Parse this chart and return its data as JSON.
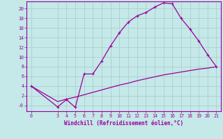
{
  "bg_color": "#c5e8e8",
  "grid_color": "#aacfcf",
  "line_color": "#990099",
  "spine_color": "#990099",
  "xlabel": "Windchill (Refroidissement éolien,°C)",
  "xlim": [
    -0.5,
    21.5
  ],
  "ylim": [
    -1.2,
    21.5
  ],
  "xticks": [
    0,
    3,
    4,
    5,
    6,
    7,
    8,
    9,
    10,
    11,
    12,
    13,
    14,
    15,
    16,
    17,
    18,
    19,
    20,
    21
  ],
  "yticks": [
    0,
    2,
    4,
    6,
    8,
    10,
    12,
    14,
    16,
    18,
    20
  ],
  "ytick_labels": [
    "-0",
    "2",
    "4",
    "6",
    "8",
    "10",
    "12",
    "14",
    "16",
    "18",
    "20"
  ],
  "line1_x": [
    0,
    3,
    4,
    5,
    6,
    7,
    8,
    9,
    10,
    11,
    12,
    13,
    14,
    15,
    16,
    17,
    18,
    19,
    20,
    21
  ],
  "line1_y": [
    4,
    -0.3,
    1.2,
    -0.4,
    6.5,
    6.5,
    9.2,
    12.3,
    15.0,
    17.2,
    18.5,
    19.2,
    20.3,
    21.2,
    21.0,
    18.0,
    15.8,
    13.3,
    10.5,
    8.0
  ],
  "line2_x": [
    0,
    3,
    4,
    5,
    6,
    7,
    8,
    9,
    10,
    11,
    12,
    13,
    14,
    15,
    16,
    17,
    18,
    19,
    20,
    21
  ],
  "line2_y": [
    4,
    0.8,
    1.3,
    1.7,
    2.2,
    2.7,
    3.2,
    3.7,
    4.2,
    4.6,
    5.1,
    5.5,
    5.9,
    6.3,
    6.6,
    6.9,
    7.2,
    7.5,
    7.7,
    8.0
  ]
}
